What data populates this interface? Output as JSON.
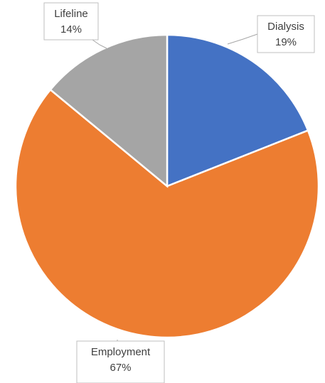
{
  "chart_data": {
    "type": "pie",
    "title": "",
    "start_angle_deg": 0,
    "direction": "clockwise",
    "legend": "none",
    "slices": [
      {
        "label": "Dialysis",
        "value": 19,
        "value_label": "19%",
        "color": "#4472C4"
      },
      {
        "label": "Employment",
        "value": 67,
        "value_label": "67%",
        "color": "#ED7D31"
      },
      {
        "label": "Lifeline",
        "value": 14,
        "value_label": "14%",
        "color": "#A5A5A5"
      }
    ]
  }
}
